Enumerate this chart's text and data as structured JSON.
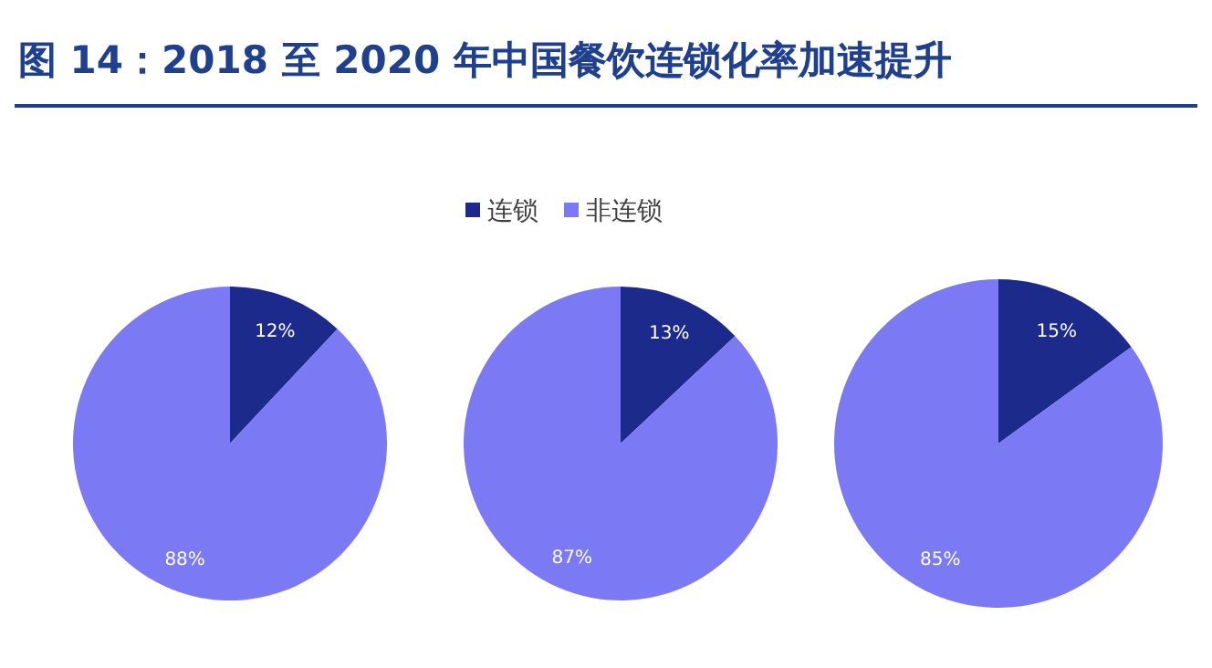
{
  "chart_data": [
    {
      "type": "pie",
      "title": "图 14：2018 至 2020 年中国餐饮连锁化率加速提升",
      "categories": [
        null,
        null
      ],
      "values": [
        12,
        88
      ],
      "colors": [
        "#1c2a8c",
        "#7b7af4"
      ],
      "value_labels": [
        "12%",
        "88%"
      ]
    },
    {
      "type": "pie",
      "categories": [
        "连锁",
        "非连锁"
      ],
      "values": [
        13,
        87
      ],
      "colors": [
        "#1c2a8c",
        "#7b7af4"
      ],
      "value_labels": [
        "13%",
        "87%"
      ],
      "legend": "top"
    },
    {
      "type": "pie",
      "categories": [
        null,
        null
      ],
      "values": [
        15,
        85
      ],
      "colors": [
        "#1c2a8c",
        "#7b7af4"
      ],
      "value_labels": [
        "15%",
        "85%"
      ]
    }
  ]
}
